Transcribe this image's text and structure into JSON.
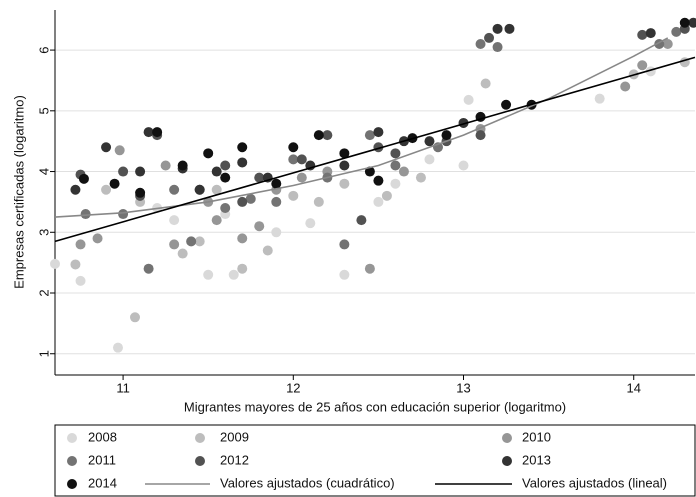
{
  "chart_data": {
    "type": "scatter",
    "xlabel": "Migrantes mayores de 25 años con educación superior (logaritmo)",
    "ylabel": "Empresas certificadas (logaritmo)",
    "xlim": [
      10.6,
      14.36
    ],
    "ylim": [
      0.65,
      6.66
    ],
    "xticks": [
      11,
      12,
      13,
      14
    ],
    "yticks": [
      1,
      2,
      3,
      4,
      5,
      6
    ],
    "grid": true,
    "series": [
      {
        "name": "2008",
        "color": "#d9d9d9",
        "x": [
          10.6,
          10.75,
          10.97,
          11.0,
          11.3,
          11.4,
          11.5,
          11.65,
          11.9,
          12.1,
          12.3,
          12.5,
          12.8,
          13.0,
          13.03,
          13.8,
          14.1,
          12.6,
          11.2,
          11.6
        ],
        "values": [
          2.48,
          2.2,
          1.1,
          4.0,
          3.2,
          2.85,
          2.3,
          2.3,
          3.0,
          3.15,
          2.3,
          3.5,
          4.2,
          4.1,
          5.18,
          5.2,
          5.65,
          3.8,
          3.4,
          3.3
        ]
      },
      {
        "name": "2009",
        "color": "#bdbdbd",
        "x": [
          10.72,
          10.9,
          11.07,
          11.35,
          11.45,
          11.7,
          11.85,
          12.0,
          12.3,
          12.55,
          12.75,
          13.1,
          13.13,
          14.0,
          14.3,
          11.1,
          11.55,
          12.15
        ],
        "values": [
          2.47,
          3.7,
          1.6,
          2.65,
          2.85,
          2.4,
          2.7,
          3.6,
          3.8,
          3.6,
          3.9,
          4.9,
          5.45,
          5.6,
          5.8,
          3.5,
          3.7,
          3.5
        ]
      },
      {
        "name": "2010",
        "color": "#969696",
        "x": [
          10.75,
          10.85,
          10.98,
          11.3,
          11.55,
          11.7,
          11.8,
          12.05,
          12.2,
          12.45,
          12.65,
          13.1,
          13.95,
          14.05,
          14.2,
          11.25,
          11.5,
          11.9
        ],
        "values": [
          2.8,
          2.9,
          4.35,
          2.8,
          3.2,
          2.9,
          3.1,
          3.9,
          4.0,
          2.4,
          4.0,
          4.7,
          5.4,
          5.75,
          6.1,
          4.1,
          3.5,
          3.7
        ]
      },
      {
        "name": "2011",
        "color": "#737373",
        "x": [
          10.78,
          11.0,
          11.15,
          11.4,
          11.6,
          11.75,
          11.9,
          12.2,
          12.3,
          12.6,
          12.85,
          13.1,
          13.2,
          14.15,
          14.25,
          11.3,
          12.0,
          12.45
        ],
        "values": [
          3.3,
          3.3,
          2.4,
          2.85,
          3.4,
          3.55,
          3.5,
          3.9,
          2.8,
          4.1,
          4.4,
          6.1,
          6.05,
          6.1,
          6.3,
          3.7,
          4.2,
          4.6
        ]
      },
      {
        "name": "2012",
        "color": "#525252",
        "x": [
          10.75,
          11.0,
          11.1,
          11.2,
          11.45,
          11.7,
          11.8,
          12.05,
          12.2,
          12.4,
          12.6,
          12.9,
          13.1,
          13.15,
          14.05,
          14.3,
          11.6,
          12.5
        ],
        "values": [
          3.95,
          4.0,
          3.6,
          4.6,
          3.7,
          3.5,
          3.9,
          4.2,
          4.6,
          3.2,
          4.3,
          4.5,
          4.6,
          6.2,
          6.25,
          6.35,
          4.1,
          4.4
        ]
      },
      {
        "name": "2013",
        "color": "#333333",
        "x": [
          10.72,
          10.9,
          11.1,
          11.15,
          11.35,
          11.55,
          11.7,
          11.85,
          12.1,
          12.3,
          12.5,
          12.8,
          13.0,
          13.2,
          13.27,
          14.1,
          14.35,
          11.45,
          12.65
        ],
        "values": [
          3.7,
          4.4,
          4.0,
          4.65,
          4.05,
          4.0,
          4.15,
          3.9,
          4.1,
          4.1,
          4.65,
          4.5,
          4.8,
          6.35,
          6.35,
          6.28,
          6.45,
          3.7,
          4.5
        ]
      },
      {
        "name": "2014",
        "color": "#111111",
        "x": [
          10.77,
          10.95,
          11.1,
          11.2,
          11.35,
          11.5,
          11.7,
          11.9,
          12.0,
          12.15,
          12.3,
          12.5,
          12.7,
          12.9,
          13.1,
          13.25,
          13.4,
          14.3,
          11.6,
          12.45
        ],
        "values": [
          3.88,
          3.8,
          3.65,
          4.65,
          4.1,
          4.3,
          4.4,
          3.8,
          4.4,
          4.6,
          4.3,
          3.85,
          4.55,
          4.6,
          4.9,
          5.1,
          5.1,
          6.45,
          3.9,
          4.0
        ]
      },
      {
        "name": "Valores ajustados (cuadrático)",
        "type": "line",
        "color": "#888888",
        "x": [
          10.6,
          11,
          11.5,
          12,
          12.5,
          13,
          13.5,
          14,
          14.2
        ],
        "values": [
          3.25,
          3.32,
          3.5,
          3.77,
          4.1,
          4.6,
          5.2,
          5.9,
          6.2
        ]
      },
      {
        "name": "Valores ajustados (lineal)",
        "type": "line",
        "color": "#000000",
        "x": [
          10.6,
          14.36
        ],
        "values": [
          2.85,
          5.88
        ]
      }
    ]
  }
}
